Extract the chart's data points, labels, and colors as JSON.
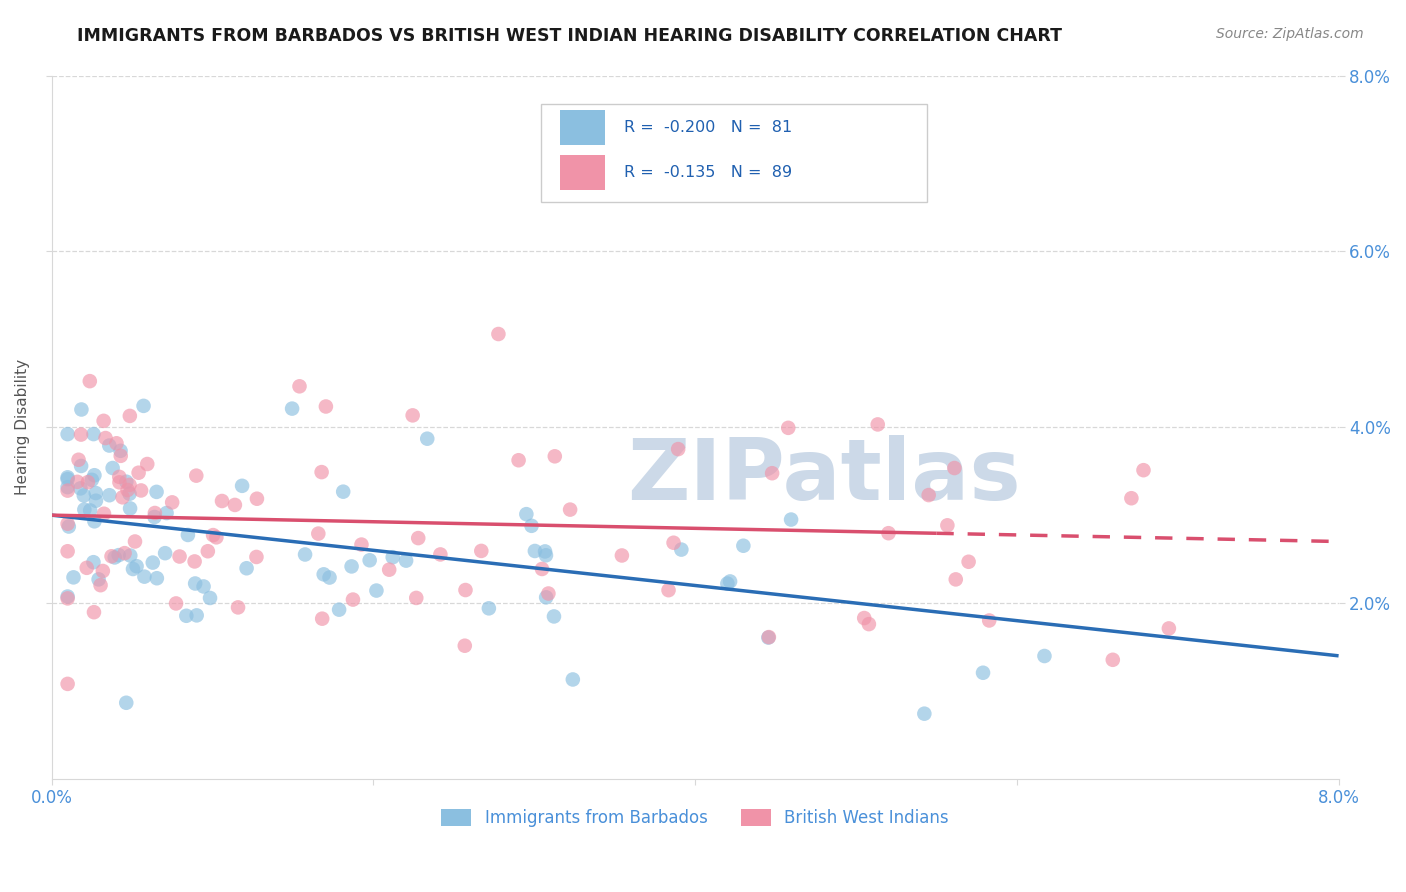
{
  "title": "IMMIGRANTS FROM BARBADOS VS BRITISH WEST INDIAN HEARING DISABILITY CORRELATION CHART",
  "source": "Source: ZipAtlas.com",
  "ylabel": "Hearing Disability",
  "x_min": 0.0,
  "x_max": 0.08,
  "y_min": 0.0,
  "y_max": 0.08,
  "x_ticks": [
    0.0,
    0.02,
    0.04,
    0.06,
    0.08
  ],
  "x_tick_labels": [
    "0.0%",
    "",
    "",
    "",
    "8.0%"
  ],
  "y_ticks": [
    0.02,
    0.04,
    0.06,
    0.08
  ],
  "y_tick_labels_right": [
    "2.0%",
    "4.0%",
    "6.0%",
    "8.0%"
  ],
  "series1_label": "Immigrants from Barbados",
  "series2_label": "British West Indians",
  "series1_color": "#8bbfe0",
  "series2_color": "#f093a8",
  "series1_alpha": 0.65,
  "series2_alpha": 0.65,
  "trendline1_color": "#2a6db5",
  "trendline2_color": "#d94f6e",
  "trendline1_start_y": 0.03,
  "trendline1_end_y": 0.014,
  "trendline2_start_y": 0.03,
  "trendline2_end_y": 0.027,
  "watermark_text": "ZIPatlas",
  "watermark_color": "#ccd9e8",
  "R1": -0.2,
  "N1": 81,
  "R2": -0.135,
  "N2": 89,
  "legend_R1_text": "R =  -0.200   N =  81",
  "legend_R2_text": "R =  -0.135   N =  89",
  "legend_text_color": "#2060b0",
  "title_color": "#1a1a1a",
  "source_color": "#888888",
  "axis_tick_color": "#4a90d9",
  "grid_color": "#d8d8d8",
  "ylabel_color": "#555555",
  "dot_size": 110
}
